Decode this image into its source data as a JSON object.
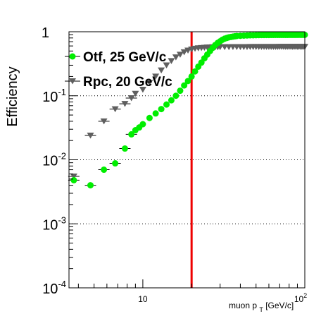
{
  "chart_data": {
    "type": "scatter",
    "xlabel": "muon p",
    "xlabel_sub": "T",
    "xlabel_unit": " [GeV/c]",
    "ylabel": "Efficiency",
    "x_scale": "log",
    "y_scale": "log",
    "xlim": [
      3.5,
      100
    ],
    "ylim": [
      0.0001,
      1
    ],
    "x_tick_labels": [
      {
        "value": 10,
        "base": "10",
        "exp": ""
      },
      {
        "value": 100,
        "base": "10",
        "exp": "2"
      }
    ],
    "y_tick_labels": [
      {
        "value": 1,
        "base": "1",
        "exp": ""
      },
      {
        "value": 0.1,
        "base": "10",
        "exp": "-1"
      },
      {
        "value": 0.01,
        "base": "10",
        "exp": "-2"
      },
      {
        "value": 0.001,
        "base": "10",
        "exp": "-3"
      },
      {
        "value": 0.0001,
        "base": "10",
        "exp": "-4"
      }
    ],
    "grid": "horizontal dotted",
    "threshold_line": {
      "x": 20,
      "color": "#ee0000"
    },
    "legend_position": "top-left",
    "series": [
      {
        "name": "Otf, 25 GeV/c",
        "marker": "circle",
        "color": "#00ee00",
        "points": [
          [
            3.75,
            0.0048
          ],
          [
            4.75,
            0.004
          ],
          [
            5.75,
            0.007
          ],
          [
            6.75,
            0.0088
          ],
          [
            7.75,
            0.015
          ],
          [
            8.5,
            0.025
          ],
          [
            9.0,
            0.029
          ],
          [
            9.5,
            0.032
          ],
          [
            10.0,
            0.036
          ],
          [
            11.0,
            0.045
          ],
          [
            12.0,
            0.053
          ],
          [
            13.0,
            0.062
          ],
          [
            14.0,
            0.073
          ],
          [
            15.0,
            0.085
          ],
          [
            16.0,
            0.1
          ],
          [
            17.0,
            0.12
          ],
          [
            18.0,
            0.145
          ],
          [
            19.0,
            0.17
          ],
          [
            20.0,
            0.2
          ],
          [
            21.0,
            0.24
          ],
          [
            22.0,
            0.285
          ],
          [
            23.0,
            0.33
          ],
          [
            24.0,
            0.385
          ],
          [
            25.0,
            0.44
          ],
          [
            26.0,
            0.5
          ],
          [
            27.0,
            0.56
          ],
          [
            28.0,
            0.62
          ],
          [
            29.0,
            0.67
          ],
          [
            30.0,
            0.71
          ],
          [
            31.0,
            0.75
          ],
          [
            32.0,
            0.78
          ],
          [
            33.0,
            0.8
          ],
          [
            34.0,
            0.82
          ],
          [
            35.0,
            0.83
          ],
          [
            36.0,
            0.84
          ],
          [
            37.0,
            0.85
          ],
          [
            38.0,
            0.86
          ],
          [
            40.0,
            0.865
          ],
          [
            42.0,
            0.87
          ],
          [
            44.0,
            0.875
          ],
          [
            46.0,
            0.88
          ],
          [
            48.0,
            0.882
          ],
          [
            50.0,
            0.885
          ],
          [
            52.0,
            0.887
          ],
          [
            54.0,
            0.888
          ],
          [
            56.0,
            0.889
          ],
          [
            58.0,
            0.89
          ],
          [
            60.0,
            0.89
          ],
          [
            62.0,
            0.891
          ],
          [
            64.0,
            0.891
          ],
          [
            66.0,
            0.892
          ],
          [
            68.0,
            0.892
          ],
          [
            70.0,
            0.892
          ],
          [
            72.0,
            0.893
          ],
          [
            74.0,
            0.893
          ],
          [
            76.0,
            0.893
          ],
          [
            78.0,
            0.893
          ],
          [
            80.0,
            0.894
          ],
          [
            82.0,
            0.894
          ],
          [
            84.0,
            0.894
          ],
          [
            86.0,
            0.894
          ],
          [
            88.0,
            0.894
          ],
          [
            90.0,
            0.895
          ],
          [
            92.0,
            0.895
          ],
          [
            94.0,
            0.895
          ],
          [
            96.0,
            0.895
          ],
          [
            98.0,
            0.895
          ],
          [
            100.0,
            0.895
          ]
        ]
      },
      {
        "name": "Rpc, 20 GeV/c",
        "marker": "triangle-down",
        "color": "#5f5f5f",
        "points": [
          [
            3.75,
            0.0055
          ],
          [
            4.75,
            0.024
          ],
          [
            5.75,
            0.04
          ],
          [
            6.75,
            0.062
          ],
          [
            7.75,
            0.075
          ],
          [
            8.5,
            0.092
          ],
          [
            9.0,
            0.108
          ],
          [
            10.0,
            0.125
          ],
          [
            11.0,
            0.16
          ],
          [
            12.0,
            0.2
          ],
          [
            13.0,
            0.25
          ],
          [
            14.0,
            0.3
          ],
          [
            15.0,
            0.35
          ],
          [
            16.0,
            0.4
          ],
          [
            17.0,
            0.44
          ],
          [
            18.0,
            0.48
          ],
          [
            19.0,
            0.51
          ],
          [
            20.0,
            0.53
          ],
          [
            21.0,
            0.545
          ],
          [
            22.0,
            0.555
          ],
          [
            23.0,
            0.56
          ],
          [
            24.0,
            0.565
          ],
          [
            25.0,
            0.57
          ],
          [
            26.0,
            0.572
          ],
          [
            27.0,
            0.575
          ],
          [
            28.0,
            0.575
          ],
          [
            29.0,
            0.576
          ],
          [
            30.0,
            0.577
          ],
          [
            32.0,
            0.578
          ],
          [
            34.0,
            0.578
          ],
          [
            36.0,
            0.579
          ],
          [
            38.0,
            0.579
          ],
          [
            40.0,
            0.58
          ],
          [
            42.0,
            0.58
          ],
          [
            44.0,
            0.58
          ],
          [
            46.0,
            0.581
          ],
          [
            48.0,
            0.581
          ],
          [
            50.0,
            0.581
          ],
          [
            52.0,
            0.581
          ],
          [
            54.0,
            0.582
          ],
          [
            56.0,
            0.582
          ],
          [
            58.0,
            0.582
          ],
          [
            60.0,
            0.582
          ],
          [
            62.0,
            0.582
          ],
          [
            64.0,
            0.582
          ],
          [
            66.0,
            0.582
          ],
          [
            68.0,
            0.582
          ],
          [
            70.0,
            0.583
          ],
          [
            72.0,
            0.583
          ],
          [
            74.0,
            0.583
          ],
          [
            76.0,
            0.583
          ],
          [
            78.0,
            0.583
          ],
          [
            80.0,
            0.583
          ],
          [
            82.0,
            0.583
          ],
          [
            84.0,
            0.583
          ],
          [
            86.0,
            0.583
          ],
          [
            88.0,
            0.583
          ],
          [
            90.0,
            0.583
          ],
          [
            92.0,
            0.583
          ],
          [
            94.0,
            0.583
          ],
          [
            96.0,
            0.583
          ],
          [
            98.0,
            0.583
          ],
          [
            100.0,
            0.583
          ]
        ]
      }
    ]
  }
}
